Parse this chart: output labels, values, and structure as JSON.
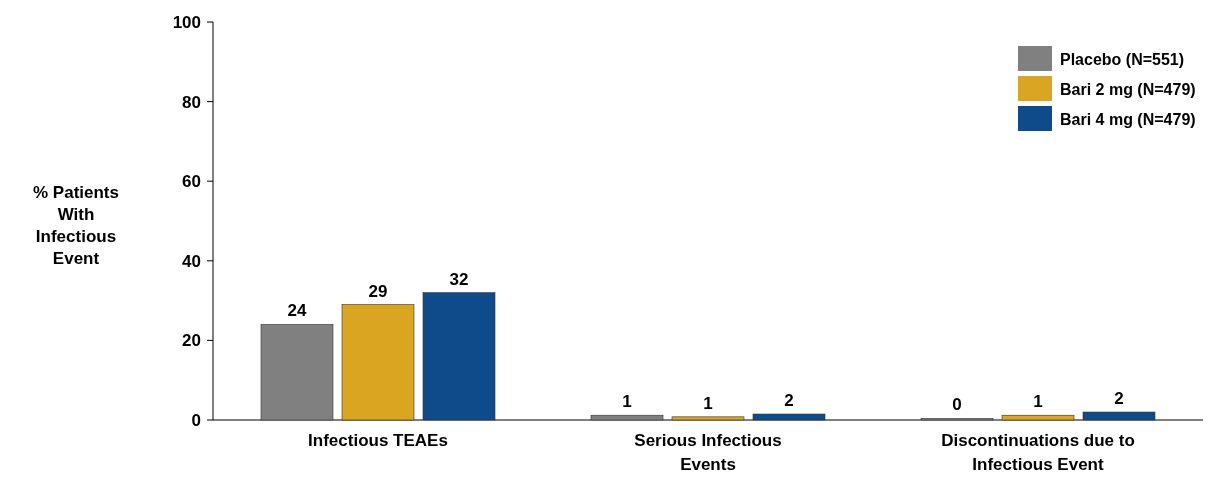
{
  "chart_data": {
    "type": "bar",
    "ylabel": "% Patients With Infectious Event",
    "categories": [
      "Infectious TEAEs",
      "Serious Infectious Events",
      "Discontinuations due to Infectious Event"
    ],
    "series": [
      {
        "name": "Placebo (N=551)",
        "color": "#808080",
        "values": [
          24,
          1.2,
          0.4
        ],
        "value_labels": [
          "24",
          "1",
          "0"
        ]
      },
      {
        "name": "Bari 2 mg (N=479)",
        "color": "#daa520",
        "values": [
          29,
          0.8,
          1.2
        ],
        "value_labels": [
          "29",
          "1",
          "1"
        ]
      },
      {
        "name": "Bari 4 mg (N=479)",
        "color": "#0f4a8a",
        "values": [
          32,
          1.5,
          2.0
        ],
        "value_labels": [
          "32",
          "2",
          "2"
        ]
      }
    ],
    "ylim": [
      0,
      100
    ],
    "yticks": [
      0,
      20,
      40,
      60,
      80,
      100
    ],
    "legend": "top right",
    "grid": false
  }
}
